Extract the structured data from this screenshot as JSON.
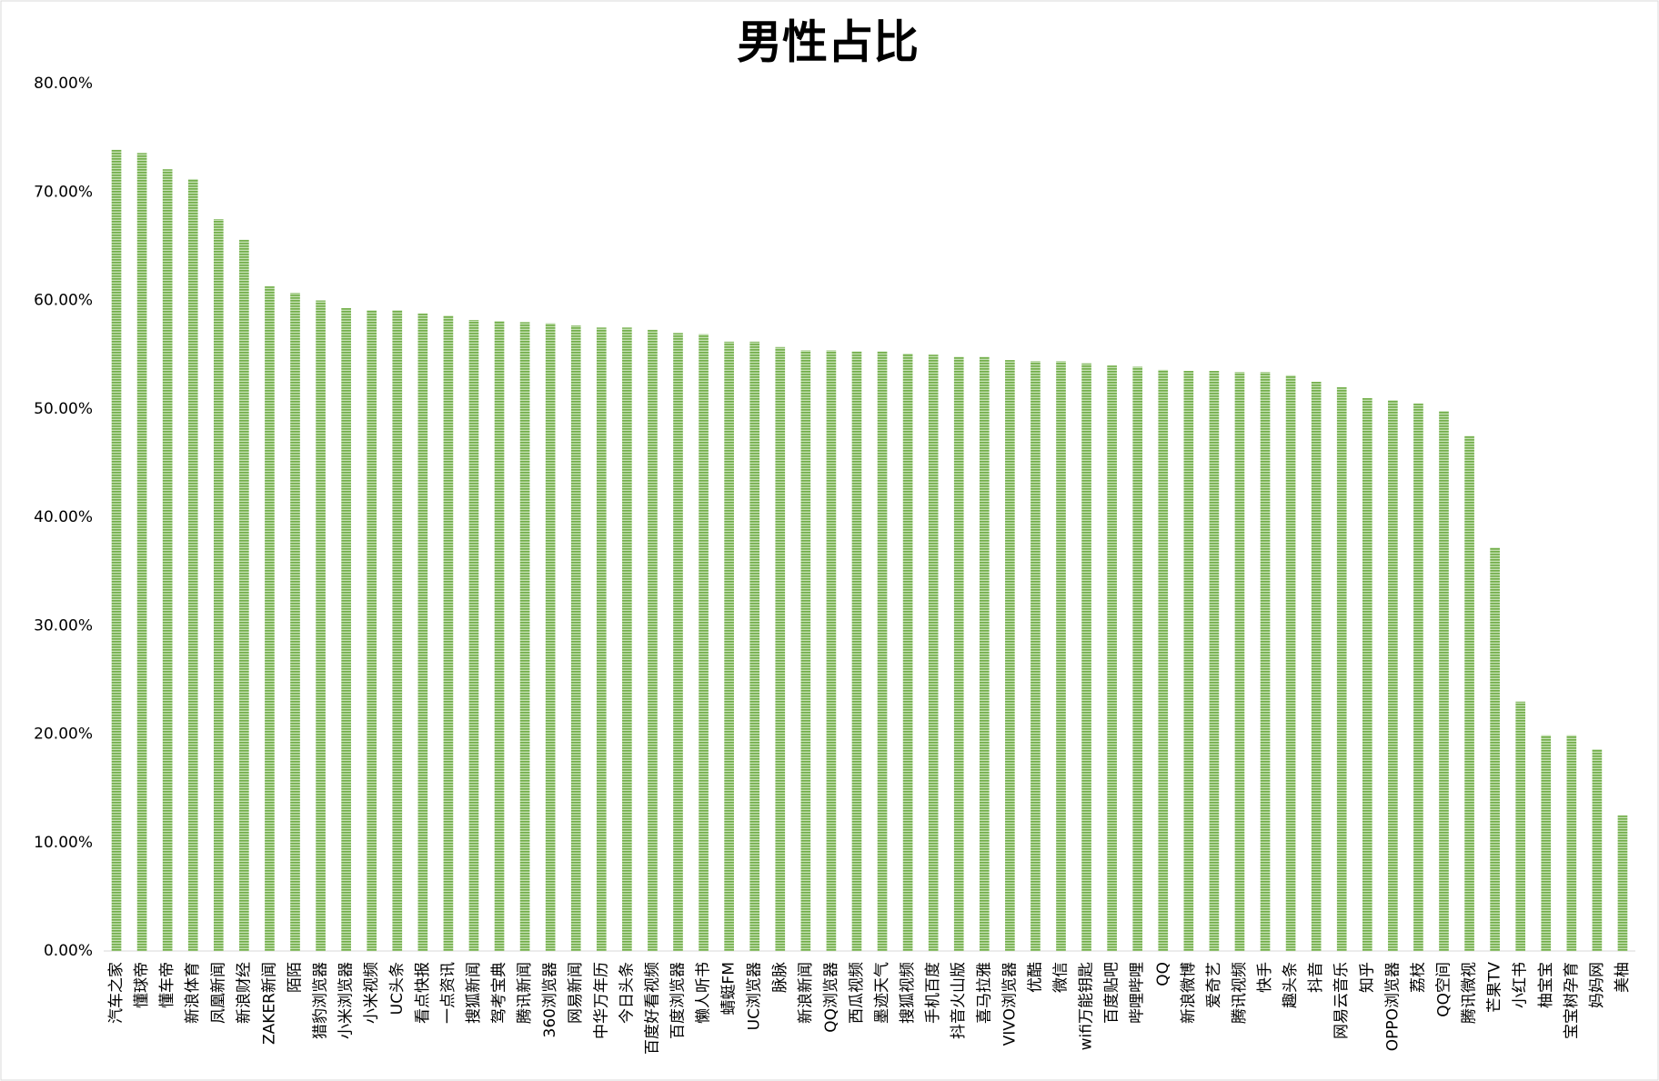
{
  "chart_data": {
    "type": "bar",
    "title": "男性占比",
    "categories": [
      "汽车之家",
      "懂球帝",
      "懂车帝",
      "新浪体育",
      "凤凰新闻",
      "新浪财经",
      "ZAKER新闻",
      "陌陌",
      "猎豹浏览器",
      "小米浏览器",
      "小米视频",
      "UC头条",
      "看点快报",
      "一点资讯",
      "搜狐新闻",
      "驾考宝典",
      "腾讯新闻",
      "360浏览器",
      "网易新闻",
      "中华万年历",
      "今日头条",
      "百度好看视频",
      "百度浏览器",
      "懒人听书",
      "蜻蜓FM",
      "UC浏览器",
      "脉脉",
      "新浪新闻",
      "QQ浏览器",
      "西瓜视频",
      "墨迹天气",
      "搜狐视频",
      "手机百度",
      "抖音火山版",
      "喜马拉雅",
      "VIVO浏览器",
      "优酷",
      "微信",
      "wifi万能钥匙",
      "百度贴吧",
      "哔哩哔哩",
      "QQ",
      "新浪微博",
      "爱奇艺",
      "腾讯视频",
      "快手",
      "趣头条",
      "抖音",
      "网易云音乐",
      "知乎",
      "OPPO浏览器",
      "荔枝",
      "QQ空间",
      "腾讯微视",
      "芒果TV",
      "小红书",
      "柚宝宝",
      "宝宝树孕育",
      "妈妈网",
      "美柚"
    ],
    "values": [
      73.9,
      73.6,
      72.1,
      71.2,
      67.5,
      65.6,
      61.3,
      60.7,
      60.0,
      59.3,
      59.1,
      59.1,
      58.8,
      58.6,
      58.2,
      58.1,
      58.0,
      57.9,
      57.7,
      57.5,
      57.5,
      57.3,
      57.0,
      56.9,
      56.2,
      56.2,
      55.7,
      55.4,
      55.4,
      55.3,
      55.3,
      55.1,
      55.0,
      54.8,
      54.8,
      54.5,
      54.4,
      54.4,
      54.2,
      54.0,
      53.9,
      53.6,
      53.5,
      53.5,
      53.4,
      53.4,
      53.1,
      52.5,
      52.0,
      51.0,
      50.8,
      50.5,
      49.8,
      47.5,
      37.2,
      23.0,
      19.9,
      19.9,
      18.6,
      12.5
    ],
    "color": "#70ad47",
    "ylim": [
      0,
      80
    ],
    "yticks": [
      {
        "value": 0,
        "label": "0.00%"
      },
      {
        "value": 10,
        "label": "10.00%"
      },
      {
        "value": 20,
        "label": "20.00%"
      },
      {
        "value": 30,
        "label": "30.00%"
      },
      {
        "value": 40,
        "label": "40.00%"
      },
      {
        "value": 50,
        "label": "50.00%"
      },
      {
        "value": 60,
        "label": "60.00%"
      },
      {
        "value": 70,
        "label": "70.00%"
      },
      {
        "value": 80,
        "label": "80.00%"
      }
    ],
    "grid": false
  }
}
